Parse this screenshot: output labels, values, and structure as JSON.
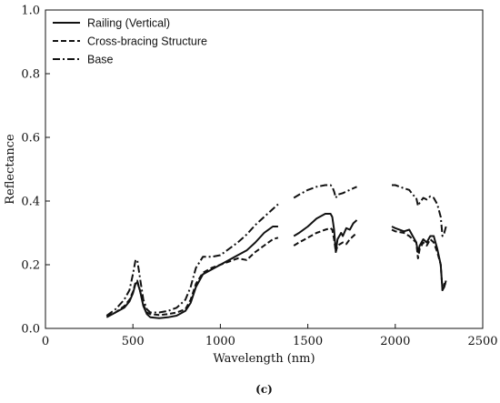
{
  "chart_data": {
    "type": "line",
    "xlabel": "Wavelength (nm)",
    "ylabel": "Reflectance",
    "caption": "(c)",
    "xlim": [
      0,
      2500
    ],
    "ylim": [
      0,
      1.0
    ],
    "x_ticks": [
      0,
      500,
      1000,
      1500,
      2000,
      2500
    ],
    "x_tick_labels": [
      "0",
      "500",
      "1000",
      "1500",
      "2000",
      "2500"
    ],
    "y_ticks": [
      0,
      0.2,
      0.4,
      0.6,
      0.8,
      1.0
    ],
    "y_tick_labels": [
      "0.0",
      "0.2",
      "0.4",
      "0.6",
      "0.8",
      "1.0"
    ],
    "grid": false,
    "legend_position": "top-left",
    "series": [
      {
        "name": "Railing (Vertical)",
        "style": "solid",
        "segments": [
          [
            [
              350,
              0.035
            ],
            [
              400,
              0.05
            ],
            [
              450,
              0.065
            ],
            [
              480,
              0.085
            ],
            [
              500,
              0.11
            ],
            [
              515,
              0.14
            ],
            [
              525,
              0.145
            ],
            [
              540,
              0.12
            ],
            [
              560,
              0.07
            ],
            [
              580,
              0.045
            ],
            [
              600,
              0.035
            ],
            [
              650,
              0.032
            ],
            [
              700,
              0.035
            ],
            [
              750,
              0.04
            ],
            [
              800,
              0.055
            ],
            [
              830,
              0.08
            ],
            [
              860,
              0.13
            ],
            [
              900,
              0.17
            ],
            [
              950,
              0.185
            ],
            [
              1000,
              0.2
            ],
            [
              1050,
              0.215
            ],
            [
              1100,
              0.23
            ],
            [
              1150,
              0.245
            ],
            [
              1200,
              0.27
            ],
            [
              1250,
              0.3
            ],
            [
              1300,
              0.32
            ],
            [
              1330,
              0.32
            ]
          ],
          [
            [
              1420,
              0.29
            ],
            [
              1450,
              0.3
            ],
            [
              1500,
              0.32
            ],
            [
              1550,
              0.345
            ],
            [
              1600,
              0.36
            ],
            [
              1630,
              0.36
            ],
            [
              1640,
              0.35
            ],
            [
              1650,
              0.31
            ],
            [
              1660,
              0.24
            ],
            [
              1670,
              0.28
            ],
            [
              1690,
              0.3
            ],
            [
              1700,
              0.29
            ],
            [
              1720,
              0.315
            ],
            [
              1740,
              0.31
            ],
            [
              1760,
              0.33
            ],
            [
              1780,
              0.34
            ]
          ],
          [
            [
              1980,
              0.32
            ],
            [
              2000,
              0.315
            ],
            [
              2050,
              0.305
            ],
            [
              2080,
              0.31
            ],
            [
              2100,
              0.29
            ],
            [
              2120,
              0.27
            ],
            [
              2130,
              0.24
            ],
            [
              2140,
              0.26
            ],
            [
              2160,
              0.28
            ],
            [
              2180,
              0.27
            ],
            [
              2200,
              0.29
            ],
            [
              2220,
              0.29
            ],
            [
              2240,
              0.25
            ],
            [
              2260,
              0.2
            ],
            [
              2270,
              0.12
            ],
            [
              2280,
              0.13
            ],
            [
              2290,
              0.15
            ]
          ]
        ]
      },
      {
        "name": "Cross-bracing Structure",
        "style": "dashed",
        "segments": [
          [
            [
              350,
              0.04
            ],
            [
              400,
              0.05
            ],
            [
              450,
              0.07
            ],
            [
              480,
              0.09
            ],
            [
              500,
              0.115
            ],
            [
              515,
              0.145
            ],
            [
              525,
              0.15
            ],
            [
              540,
              0.12
            ],
            [
              560,
              0.075
            ],
            [
              580,
              0.05
            ],
            [
              600,
              0.045
            ],
            [
              650,
              0.042
            ],
            [
              700,
              0.045
            ],
            [
              750,
              0.05
            ],
            [
              800,
              0.06
            ],
            [
              830,
              0.09
            ],
            [
              860,
              0.14
            ],
            [
              900,
              0.175
            ],
            [
              950,
              0.19
            ],
            [
              1000,
              0.2
            ],
            [
              1050,
              0.21
            ],
            [
              1100,
              0.22
            ],
            [
              1150,
              0.215
            ],
            [
              1200,
              0.24
            ],
            [
              1250,
              0.26
            ],
            [
              1300,
              0.28
            ],
            [
              1330,
              0.285
            ]
          ],
          [
            [
              1420,
              0.26
            ],
            [
              1450,
              0.27
            ],
            [
              1500,
              0.285
            ],
            [
              1550,
              0.3
            ],
            [
              1600,
              0.31
            ],
            [
              1630,
              0.315
            ],
            [
              1640,
              0.31
            ],
            [
              1650,
              0.28
            ],
            [
              1660,
              0.24
            ],
            [
              1670,
              0.26
            ],
            [
              1700,
              0.27
            ],
            [
              1720,
              0.265
            ],
            [
              1740,
              0.28
            ],
            [
              1760,
              0.29
            ],
            [
              1780,
              0.3
            ]
          ],
          [
            [
              1980,
              0.31
            ],
            [
              2000,
              0.305
            ],
            [
              2050,
              0.3
            ],
            [
              2080,
              0.29
            ],
            [
              2100,
              0.28
            ],
            [
              2120,
              0.27
            ],
            [
              2130,
              0.22
            ],
            [
              2140,
              0.25
            ],
            [
              2160,
              0.27
            ],
            [
              2180,
              0.26
            ],
            [
              2200,
              0.28
            ],
            [
              2220,
              0.27
            ],
            [
              2240,
              0.24
            ],
            [
              2260,
              0.2
            ],
            [
              2270,
              0.12
            ],
            [
              2280,
              0.14
            ],
            [
              2290,
              0.14
            ]
          ]
        ]
      },
      {
        "name": "Base",
        "style": "dashdot",
        "segments": [
          [
            [
              350,
              0.04
            ],
            [
              400,
              0.06
            ],
            [
              450,
              0.09
            ],
            [
              480,
              0.12
            ],
            [
              500,
              0.17
            ],
            [
              515,
              0.215
            ],
            [
              525,
              0.215
            ],
            [
              540,
              0.16
            ],
            [
              560,
              0.09
            ],
            [
              580,
              0.06
            ],
            [
              600,
              0.05
            ],
            [
              650,
              0.05
            ],
            [
              700,
              0.055
            ],
            [
              750,
              0.065
            ],
            [
              800,
              0.09
            ],
            [
              830,
              0.13
            ],
            [
              860,
              0.19
            ],
            [
              900,
              0.225
            ],
            [
              950,
              0.225
            ],
            [
              1000,
              0.23
            ],
            [
              1050,
              0.25
            ],
            [
              1100,
              0.27
            ],
            [
              1150,
              0.295
            ],
            [
              1200,
              0.325
            ],
            [
              1250,
              0.35
            ],
            [
              1300,
              0.375
            ],
            [
              1330,
              0.39
            ]
          ],
          [
            [
              1420,
              0.41
            ],
            [
              1450,
              0.42
            ],
            [
              1500,
              0.435
            ],
            [
              1550,
              0.445
            ],
            [
              1600,
              0.45
            ],
            [
              1630,
              0.45
            ],
            [
              1640,
              0.445
            ],
            [
              1650,
              0.43
            ],
            [
              1660,
              0.41
            ],
            [
              1670,
              0.42
            ],
            [
              1700,
              0.425
            ],
            [
              1720,
              0.43
            ],
            [
              1740,
              0.435
            ],
            [
              1760,
              0.44
            ],
            [
              1780,
              0.445
            ]
          ],
          [
            [
              1980,
              0.45
            ],
            [
              2000,
              0.45
            ],
            [
              2050,
              0.44
            ],
            [
              2080,
              0.435
            ],
            [
              2100,
              0.42
            ],
            [
              2120,
              0.41
            ],
            [
              2130,
              0.385
            ],
            [
              2140,
              0.395
            ],
            [
              2160,
              0.41
            ],
            [
              2180,
              0.405
            ],
            [
              2200,
              0.415
            ],
            [
              2220,
              0.41
            ],
            [
              2240,
              0.39
            ],
            [
              2260,
              0.35
            ],
            [
              2270,
              0.29
            ],
            [
              2280,
              0.3
            ],
            [
              2290,
              0.32
            ]
          ]
        ]
      }
    ]
  }
}
